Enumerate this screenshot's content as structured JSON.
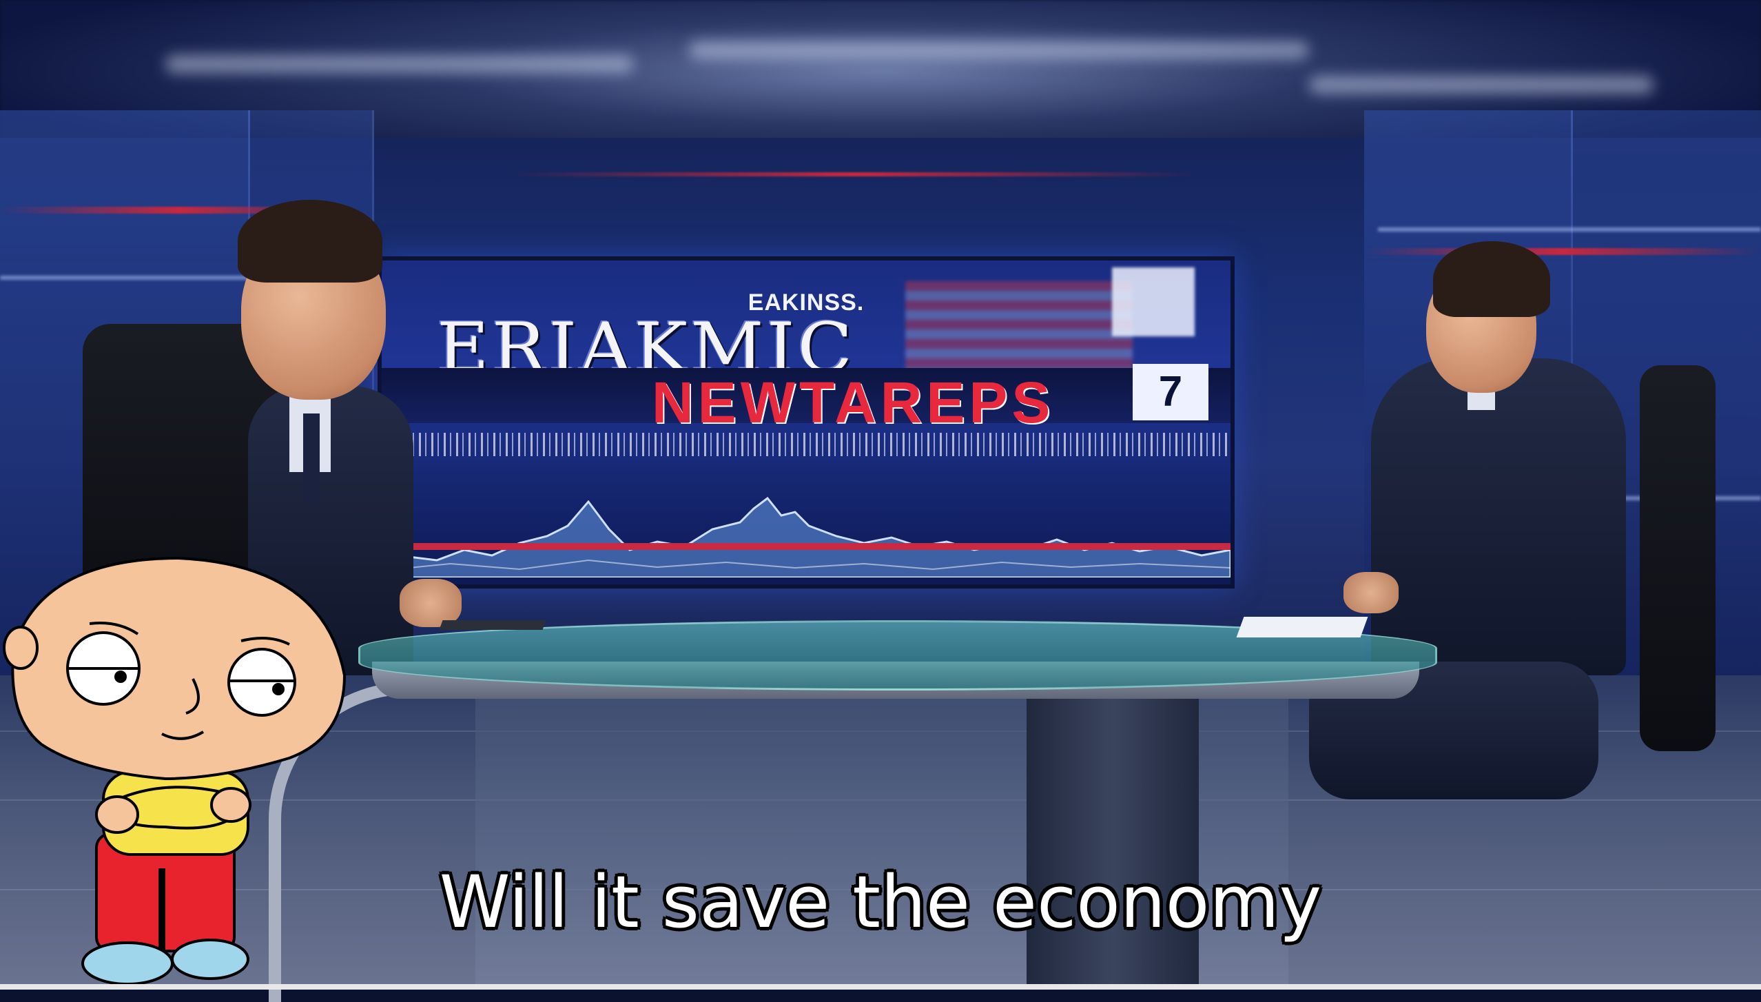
{
  "screen": {
    "network_label": "EAKINSS.",
    "headline": "ERIAKMIC",
    "subheadline": "NEWTAREPS",
    "channel_number": "7"
  },
  "subtitle": "Will it save the economy",
  "colors": {
    "studio_blue": "#1a2f73",
    "accent_red": "#c8283e",
    "desk_glass": "#6ed8cf",
    "subtitle_text": "#ffffff"
  }
}
